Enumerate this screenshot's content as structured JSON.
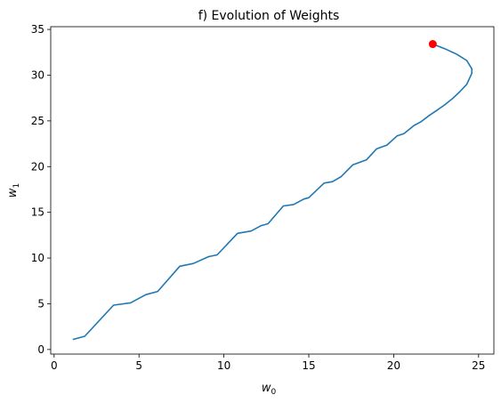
{
  "chart_data": {
    "type": "line",
    "title": "f) Evolution of Weights",
    "xlabel": {
      "base": "w",
      "sub": "0"
    },
    "ylabel": {
      "base": "w",
      "sub": "1"
    },
    "xlim": [
      -0.2,
      25.9
    ],
    "ylim": [
      -0.5,
      35.3
    ],
    "xticks": [
      0,
      5,
      10,
      15,
      20,
      25
    ],
    "yticks": [
      0,
      5,
      10,
      15,
      20,
      25,
      30,
      35
    ],
    "grid": false,
    "legend": "none",
    "series": [
      {
        "color": "#1f77b4",
        "points": [
          [
            1.1,
            1.1
          ],
          [
            1.8,
            1.45
          ],
          [
            3.5,
            4.85
          ],
          [
            4.5,
            5.1
          ],
          [
            5.4,
            6.0
          ],
          [
            6.1,
            6.35
          ],
          [
            7.4,
            9.1
          ],
          [
            8.2,
            9.4
          ],
          [
            9.1,
            10.15
          ],
          [
            9.6,
            10.35
          ],
          [
            10.8,
            12.7
          ],
          [
            11.6,
            12.95
          ],
          [
            12.2,
            13.55
          ],
          [
            12.6,
            13.75
          ],
          [
            13.5,
            15.7
          ],
          [
            14.1,
            15.85
          ],
          [
            14.7,
            16.45
          ],
          [
            15.0,
            16.6
          ],
          [
            15.9,
            18.2
          ],
          [
            16.4,
            18.35
          ],
          [
            16.9,
            18.9
          ],
          [
            17.6,
            20.2
          ],
          [
            18.4,
            20.75
          ],
          [
            19.0,
            21.95
          ],
          [
            19.6,
            22.35
          ],
          [
            20.2,
            23.35
          ],
          [
            20.6,
            23.6
          ],
          [
            21.2,
            24.5
          ],
          [
            21.6,
            24.9
          ],
          [
            22.1,
            25.6
          ],
          [
            22.5,
            26.1
          ],
          [
            23.0,
            26.75
          ],
          [
            23.5,
            27.5
          ],
          [
            23.9,
            28.2
          ],
          [
            24.3,
            29.0
          ],
          [
            24.6,
            30.2
          ],
          [
            24.6,
            30.7
          ],
          [
            24.3,
            31.6
          ],
          [
            23.7,
            32.3
          ],
          [
            23.0,
            32.9
          ],
          [
            22.3,
            33.4
          ]
        ]
      }
    ],
    "endpoint_marker": {
      "x": 22.3,
      "y": 33.4,
      "color": "#ff0000"
    }
  }
}
